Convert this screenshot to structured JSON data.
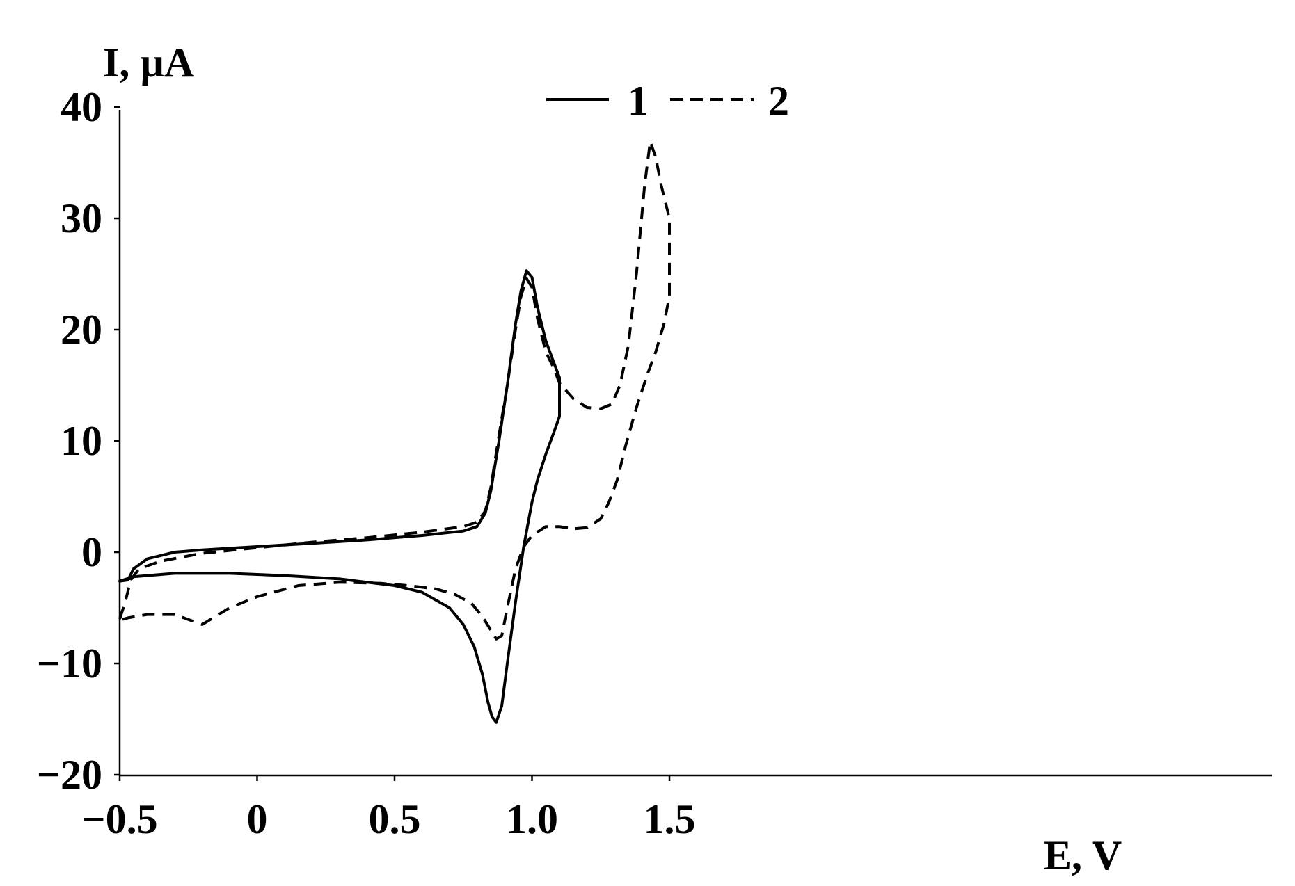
{
  "chart_data": {
    "type": "line",
    "xlabel": "E, V",
    "ylabel": "I, µA",
    "xlim": [
      -0.5,
      1.6
    ],
    "ylim": [
      -20,
      40
    ],
    "x_ticks": [
      {
        "value": -0.5,
        "label": "−0.5"
      },
      {
        "value": 0,
        "label": "0"
      },
      {
        "value": 0.5,
        "label": "0.5"
      },
      {
        "value": 1.0,
        "label": "1.0"
      },
      {
        "value": 1.5,
        "label": "1.5"
      }
    ],
    "y_ticks": [
      {
        "value": 40,
        "label": "40"
      },
      {
        "value": 30,
        "label": "30"
      },
      {
        "value": 20,
        "label": "20"
      },
      {
        "value": 10,
        "label": "10"
      },
      {
        "value": 0,
        "label": "0"
      },
      {
        "value": -10,
        "label": "−10"
      },
      {
        "value": -20,
        "label": "−20"
      }
    ],
    "legend_position": "top-center",
    "grid": false,
    "series": [
      {
        "name": "1",
        "style": "solid",
        "color": "#000000",
        "x": [
          -0.5,
          -0.47,
          -0.45,
          -0.4,
          -0.3,
          -0.2,
          0.0,
          0.2,
          0.4,
          0.6,
          0.75,
          0.8,
          0.83,
          0.85,
          0.88,
          0.91,
          0.94,
          0.96,
          0.98,
          1.0,
          1.02,
          1.05,
          1.08,
          1.1,
          1.1,
          1.08,
          1.05,
          1.02,
          1.0,
          0.97,
          0.94,
          0.91,
          0.89,
          0.87,
          0.855,
          0.84,
          0.82,
          0.79,
          0.75,
          0.7,
          0.6,
          0.5,
          0.3,
          0.1,
          -0.1,
          -0.3,
          -0.45,
          -0.5
        ],
        "y": [
          -2.6,
          -2.5,
          -1.5,
          -0.6,
          0.0,
          0.2,
          0.5,
          0.8,
          1.1,
          1.5,
          1.9,
          2.3,
          3.5,
          5.5,
          10.0,
          15.0,
          20.5,
          23.5,
          25.3,
          24.7,
          22.0,
          19.0,
          17.0,
          15.7,
          12.2,
          10.8,
          8.8,
          6.5,
          4.5,
          0.5,
          -4.5,
          -10.0,
          -13.8,
          -15.3,
          -14.8,
          -13.5,
          -11.0,
          -8.5,
          -6.5,
          -5.0,
          -3.6,
          -3.0,
          -2.4,
          -2.1,
          -1.9,
          -1.9,
          -2.2,
          -2.6
        ]
      },
      {
        "name": "2",
        "style": "dashed",
        "color": "#000000",
        "x": [
          -0.5,
          -0.48,
          -0.46,
          -0.43,
          -0.35,
          -0.2,
          0.0,
          0.2,
          0.4,
          0.6,
          0.75,
          0.8,
          0.83,
          0.85,
          0.88,
          0.91,
          0.94,
          0.96,
          0.98,
          1.0,
          1.02,
          1.05,
          1.08,
          1.1,
          1.15,
          1.2,
          1.25,
          1.29,
          1.32,
          1.35,
          1.38,
          1.41,
          1.43,
          1.45,
          1.47,
          1.5,
          1.5,
          1.48,
          1.45,
          1.42,
          1.38,
          1.34,
          1.31,
          1.28,
          1.25,
          1.2,
          1.15,
          1.1,
          1.05,
          1.0,
          0.97,
          0.94,
          0.91,
          0.89,
          0.87,
          0.85,
          0.82,
          0.78,
          0.72,
          0.65,
          0.55,
          0.45,
          0.3,
          0.15,
          0.0,
          -0.1,
          -0.2,
          -0.3,
          -0.4,
          -0.47,
          -0.5
        ],
        "y": [
          -6.0,
          -4.5,
          -2.5,
          -1.5,
          -0.8,
          -0.1,
          0.4,
          0.9,
          1.3,
          1.8,
          2.3,
          2.7,
          3.7,
          5.8,
          10.5,
          15.0,
          20.0,
          23.0,
          24.6,
          23.8,
          21.0,
          18.0,
          16.5,
          15.2,
          13.8,
          13.0,
          12.9,
          13.3,
          15.0,
          18.5,
          25.0,
          33.0,
          36.9,
          35.5,
          33.0,
          30.0,
          23.0,
          20.5,
          18.0,
          16.0,
          13.0,
          9.5,
          6.5,
          4.5,
          3.0,
          2.2,
          2.1,
          2.3,
          2.3,
          1.5,
          0.5,
          -1.5,
          -5.0,
          -7.5,
          -7.8,
          -7.0,
          -5.8,
          -4.6,
          -3.8,
          -3.3,
          -3.0,
          -2.8,
          -2.7,
          -3.0,
          -4.0,
          -5.0,
          -6.5,
          -5.6,
          -5.6,
          -5.9,
          -6.1
        ]
      }
    ]
  }
}
